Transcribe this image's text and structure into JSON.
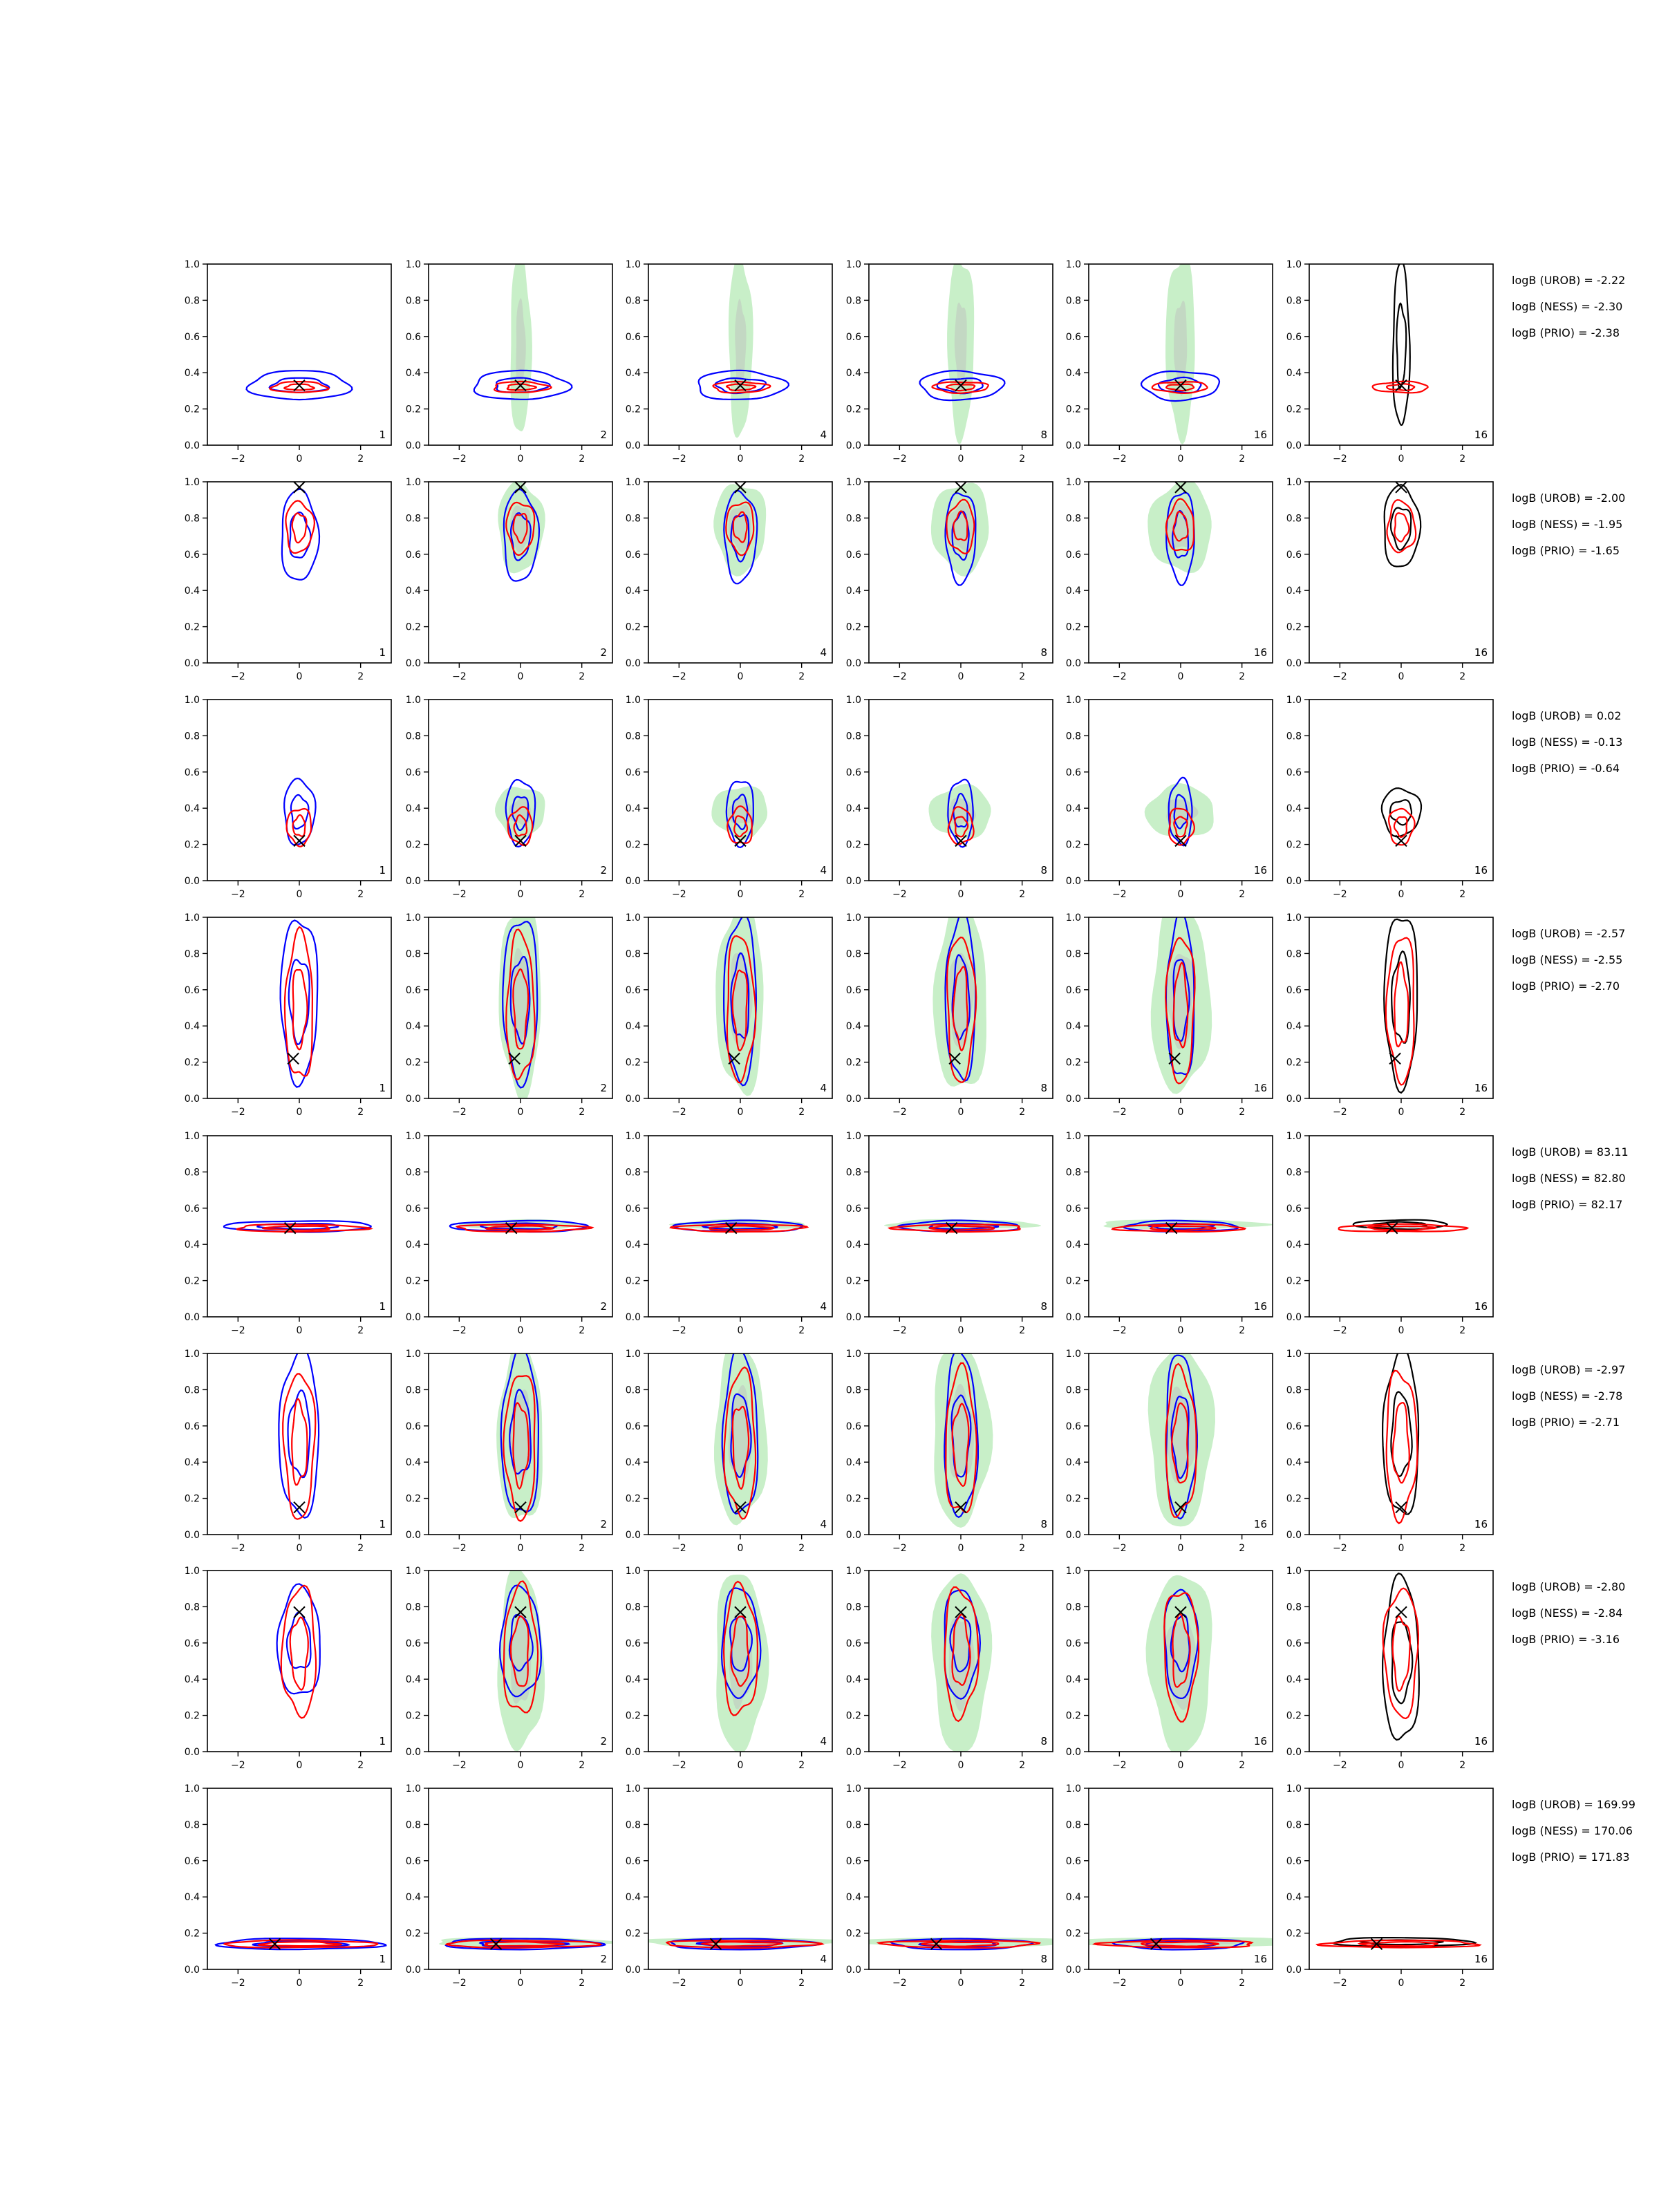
{
  "colors": {
    "urob": "#0000ff",
    "ness": "#ff0000",
    "prio_contour": "#000000",
    "fill_outer": "#c8efc8",
    "fill_inner": "#bcbcbc",
    "axes": "#000000"
  },
  "chart_data": {
    "type": "contour-grid",
    "rows": 8,
    "columns": 6,
    "panel_labels": [
      "1",
      "2",
      "4",
      "8",
      "16",
      "16"
    ],
    "xlim": [
      -3,
      3
    ],
    "ylim": [
      0,
      1
    ],
    "x_ticks": [
      -2,
      0,
      2
    ],
    "x_tick_labels": [
      "−2",
      "0",
      "2"
    ],
    "y_ticks": [
      0.0,
      0.2,
      0.4,
      0.6,
      0.8,
      1.0
    ],
    "y_tick_labels": [
      "0.0",
      "0.2",
      "0.4",
      "0.6",
      "0.8",
      "1.0"
    ],
    "grid": false,
    "marker": "x",
    "row_data": [
      {
        "truth": [
          0,
          0.33
        ],
        "urob": [
          {
            "cx": 0,
            "cy": 0.33,
            "w": 3.3,
            "h": 0.16
          }
        ],
        "ness": [
          {
            "cx": 0,
            "cy": 0.32,
            "w": 1.8,
            "h": 0.06
          }
        ],
        "prio": [
          {
            "cx": 0,
            "cy": 0.55,
            "w": 0.6,
            "h": 0.9
          }
        ]
      },
      {
        "truth": [
          0,
          0.97
        ],
        "urob": [
          {
            "cx": 0,
            "cy": 0.7,
            "w": 1.2,
            "h": 0.5
          }
        ],
        "ness": [
          {
            "cx": 0,
            "cy": 0.75,
            "w": 0.9,
            "h": 0.28
          }
        ],
        "prio": [
          {
            "cx": 0,
            "cy": 0.75,
            "w": 1.3,
            "h": 0.45
          }
        ]
      },
      {
        "truth": [
          0,
          0.22
        ],
        "urob": [
          {
            "cx": 0,
            "cy": 0.38,
            "w": 1.0,
            "h": 0.36
          }
        ],
        "ness": [
          {
            "cx": 0,
            "cy": 0.3,
            "w": 0.8,
            "h": 0.2
          }
        ],
        "prio": [
          {
            "cx": 0,
            "cy": 0.38,
            "w": 1.4,
            "h": 0.26
          }
        ]
      },
      {
        "truth": [
          -0.2,
          0.22
        ],
        "urob": [
          {
            "cx": 0,
            "cy": 0.55,
            "w": 1.2,
            "h": 0.9
          }
        ],
        "ness": [
          {
            "cx": 0,
            "cy": 0.5,
            "w": 0.9,
            "h": 0.8
          }
        ],
        "prio": [
          {
            "cx": 0,
            "cy": 0.55,
            "w": 1.2,
            "h": 0.95
          }
        ]
      },
      {
        "truth": [
          -0.3,
          0.49
        ],
        "urob": [
          {
            "cx": 0,
            "cy": 0.5,
            "w": 4.8,
            "h": 0.06
          }
        ],
        "ness": [
          {
            "cx": 0,
            "cy": 0.49,
            "w": 4.2,
            "h": 0.04
          }
        ],
        "prio": [
          {
            "cx": 0,
            "cy": 0.51,
            "w": 3.4,
            "h": 0.05
          }
        ]
      },
      {
        "truth": [
          0,
          0.15
        ],
        "urob": [
          {
            "cx": 0,
            "cy": 0.55,
            "w": 1.3,
            "h": 0.9
          }
        ],
        "ness": [
          {
            "cx": 0,
            "cy": 0.5,
            "w": 1.0,
            "h": 0.8
          }
        ],
        "prio": [
          {
            "cx": 0,
            "cy": 0.55,
            "w": 1.3,
            "h": 0.9
          }
        ]
      },
      {
        "truth": [
          0,
          0.77
        ],
        "urob": [
          {
            "cx": 0,
            "cy": 0.6,
            "w": 1.4,
            "h": 0.6
          }
        ],
        "ness": [
          {
            "cx": 0,
            "cy": 0.55,
            "w": 1.1,
            "h": 0.7
          }
        ],
        "prio": [
          {
            "cx": 0,
            "cy": 0.5,
            "w": 1.3,
            "h": 0.9
          }
        ]
      },
      {
        "truth": [
          -0.8,
          0.14
        ],
        "urob": [
          {
            "cx": 0,
            "cy": 0.14,
            "w": 5.4,
            "h": 0.06
          }
        ],
        "ness": [
          {
            "cx": 0,
            "cy": 0.14,
            "w": 5.0,
            "h": 0.04
          }
        ],
        "prio": [
          {
            "cx": 0,
            "cy": 0.15,
            "w": 5.0,
            "h": 0.05
          }
        ]
      }
    ]
  },
  "logb": [
    [
      "logB (UROB) = -2.22",
      "logB (NESS) = -2.30",
      "logB (PRIO) = -2.38"
    ],
    [
      "logB (UROB) = -2.00",
      "logB (NESS) = -1.95",
      "logB (PRIO) = -1.65"
    ],
    [
      "logB (UROB) = 0.02",
      "logB (NESS) = -0.13",
      "logB (PRIO) = -0.64"
    ],
    [
      "logB (UROB) = -2.57",
      "logB (NESS) = -2.55",
      "logB (PRIO) = -2.70"
    ],
    [
      "logB (UROB) = 83.11",
      "logB (NESS) = 82.80",
      "logB (PRIO) = 82.17"
    ],
    [
      "logB (UROB) = -2.97",
      "logB (NESS) = -2.78",
      "logB (PRIO) = -2.71"
    ],
    [
      "logB (UROB) = -2.80",
      "logB (NESS) = -2.84",
      "logB (PRIO) = -3.16"
    ],
    [
      "logB (UROB) = 169.99",
      "logB (NESS) = 170.06",
      "logB (PRIO) = 171.83"
    ]
  ]
}
